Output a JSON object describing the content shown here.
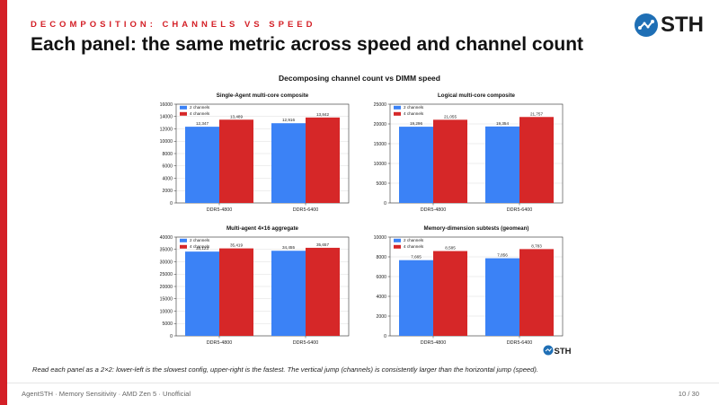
{
  "header": {
    "kicker": "DECOMPOSITION: CHANNELS VS SPEED",
    "title": "Each panel: the same metric across speed and channel count"
  },
  "logo": {
    "text": "STH"
  },
  "figure": {
    "title": "Decomposing channel count vs DIMM speed"
  },
  "colors": {
    "two_channels": "#3b82f6",
    "four_channels": "#d62728",
    "accent": "#d42027"
  },
  "chart_data": [
    {
      "type": "bar",
      "title": "Single-Agent multi-core composite",
      "categories": [
        "DDR5-4800",
        "DDR5-6400"
      ],
      "series": [
        {
          "name": "2 channels",
          "values": [
            12347,
            12916
          ],
          "labels": [
            "12,347",
            "12,916"
          ]
        },
        {
          "name": "4 channels",
          "values": [
            13489,
            13842
          ],
          "labels": [
            "13,489",
            "13,842"
          ]
        }
      ],
      "ylim": [
        0,
        16000
      ],
      "yticks": [
        0,
        2000,
        4000,
        6000,
        8000,
        10000,
        12000,
        14000,
        16000
      ],
      "legend": "top-left",
      "grid": true
    },
    {
      "type": "bar",
      "title": "Logical multi-core composite",
      "categories": [
        "DDR5-4800",
        "DDR5-6400"
      ],
      "series": [
        {
          "name": "2 channels",
          "values": [
            19296,
            19354
          ],
          "labels": [
            "19,296",
            "19,354"
          ]
        },
        {
          "name": "4 channels",
          "values": [
            21055,
            21757
          ],
          "labels": [
            "21,055",
            "21,757"
          ]
        }
      ],
      "ylim": [
        0,
        25000
      ],
      "yticks": [
        0,
        5000,
        10000,
        15000,
        20000,
        25000
      ],
      "legend": "top-left",
      "grid": true
    },
    {
      "type": "bar",
      "title": "Multi-agent 4×16 aggregate",
      "categories": [
        "DDR5-4800",
        "DDR5-6400"
      ],
      "series": [
        {
          "name": "2 channels",
          "values": [
            34123,
            34455
          ],
          "labels": [
            "34,123",
            "34,455"
          ]
        },
        {
          "name": "4 channels",
          "values": [
            35419,
            35657
          ],
          "labels": [
            "35,419",
            "35,657"
          ]
        }
      ],
      "ylim": [
        0,
        40000
      ],
      "yticks": [
        0,
        5000,
        10000,
        15000,
        20000,
        25000,
        30000,
        35000,
        40000
      ],
      "legend": "top-left",
      "grid": true
    },
    {
      "type": "bar",
      "title": "Memory-dimension subtests (geomean)",
      "categories": [
        "DDR5-4800",
        "DDR5-6400"
      ],
      "series": [
        {
          "name": "2 channels",
          "values": [
            7665,
            7856
          ],
          "labels": [
            "7,665",
            "7,856"
          ]
        },
        {
          "name": "4 channels",
          "values": [
            8585,
            8783
          ],
          "labels": [
            "8,585",
            "8,783"
          ]
        }
      ],
      "ylim": [
        0,
        10000
      ],
      "yticks": [
        0,
        2000,
        4000,
        6000,
        8000,
        10000
      ],
      "legend": "top-left",
      "grid": true
    }
  ],
  "caption": "Read each panel as a 2×2: lower-left is the slowest config, upper-right is the fastest. The vertical jump (channels) is consistently larger than the horizontal jump (speed).",
  "footer": {
    "left": "AgentSTH · Memory Sensitivity · AMD Zen 5 · Unofficial",
    "page": "10 / 30"
  }
}
